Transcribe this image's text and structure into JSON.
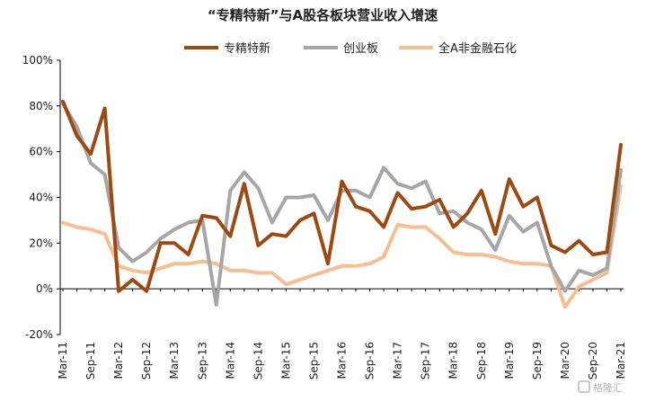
{
  "chart_data": {
    "type": "line",
    "title": "“专精特新”与A股各板块营业收入增速",
    "x": [
      "Mar-11",
      "Jun-11",
      "Sep-11",
      "Dec-11",
      "Mar-12",
      "Jun-12",
      "Sep-12",
      "Dec-12",
      "Mar-13",
      "Jun-13",
      "Sep-13",
      "Dec-13",
      "Mar-14",
      "Jun-14",
      "Sep-14",
      "Dec-14",
      "Mar-15",
      "Jun-15",
      "Sep-15",
      "Dec-15",
      "Mar-16",
      "Jun-16",
      "Sep-16",
      "Dec-16",
      "Mar-17",
      "Jun-17",
      "Sep-17",
      "Dec-17",
      "Mar-18",
      "Jun-18",
      "Sep-18",
      "Dec-18",
      "Mar-19",
      "Jun-19",
      "Sep-19",
      "Dec-19",
      "Mar-20",
      "Jun-20",
      "Sep-20",
      "Dec-20",
      "Mar-21"
    ],
    "x_tick_labels": [
      "Mar-11",
      "Sep-11",
      "Mar-12",
      "Sep-12",
      "Mar-13",
      "Sep-13",
      "Mar-14",
      "Sep-14",
      "Mar-15",
      "Sep-15",
      "Mar-16",
      "Sep-16",
      "Mar-17",
      "Sep-17",
      "Mar-18",
      "Sep-18",
      "Mar-19",
      "Sep-19",
      "Mar-20",
      "Sep-20",
      "Mar-21"
    ],
    "y_ticks": [
      "-20%",
      "0%",
      "20%",
      "40%",
      "60%",
      "80%",
      "100%"
    ],
    "ylim": [
      -20,
      100
    ],
    "legend_position": "top",
    "series": [
      {
        "name": "专精特新",
        "color": "#9c4a12",
        "values": [
          82,
          67,
          59,
          79,
          -1,
          4,
          -1,
          20,
          20,
          15,
          32,
          31,
          23,
          46,
          19,
          24,
          23,
          30,
          33,
          11,
          47,
          36,
          34,
          27,
          42,
          35,
          36,
          39,
          27,
          33,
          43,
          24,
          48,
          36,
          40,
          19,
          16,
          21,
          15,
          16,
          63
        ]
      },
      {
        "name": "创业板",
        "color": "#a6a6a6",
        "values": [
          81,
          71,
          55,
          50,
          18,
          12,
          16,
          22,
          26,
          29,
          30,
          -7,
          43,
          51,
          44,
          29,
          40,
          40,
          41,
          30,
          43,
          43,
          40,
          53,
          46,
          44,
          47,
          33,
          34,
          29,
          26,
          17,
          32,
          25,
          29,
          10,
          -1,
          8,
          6,
          9,
          52
        ]
      },
      {
        "name": "全A非金融石化",
        "color": "#f6be91",
        "values": [
          29,
          27,
          26,
          24,
          10,
          8,
          7,
          9,
          11,
          11,
          12,
          11,
          8,
          8,
          7,
          7,
          2,
          4,
          6,
          8,
          10,
          10,
          11,
          14,
          28,
          27,
          27,
          22,
          16,
          15,
          15,
          14,
          12,
          11,
          11,
          10,
          -8,
          1,
          4,
          7,
          45
        ]
      }
    ]
  },
  "watermark": "格隆汇"
}
